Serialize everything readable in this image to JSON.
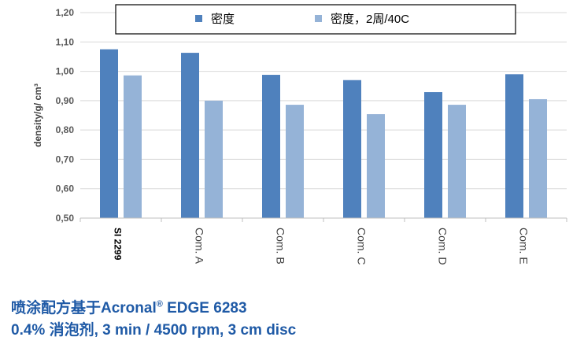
{
  "chart_data": {
    "type": "bar",
    "categories": [
      "SI 2299",
      "Com. A",
      "Com. B",
      "Com. C",
      "Com. D",
      "Com. E"
    ],
    "series": [
      {
        "name": "密度",
        "values": [
          1.075,
          1.063,
          0.988,
          0.97,
          0.929,
          0.99
        ],
        "color": "#4f81bd"
      },
      {
        "name": "密度，2周/40C",
        "values": [
          0.986,
          0.9,
          0.886,
          0.854,
          0.886,
          0.905
        ],
        "color": "#95b3d7"
      }
    ],
    "ylabel": "density/g/ cm³",
    "ylim": [
      0.5,
      1.2
    ],
    "yticks": [
      "0,50",
      "0,60",
      "0,70",
      "0,80",
      "0,90",
      "1,00",
      "1,10",
      "1,20"
    ],
    "grid": true,
    "legend": "top"
  },
  "caption": {
    "line1_text": "喷涂配方基于Acronal",
    "line1_sup": "®",
    "line1_tail": " EDGE 6283",
    "line2": "0.4% 消泡剂, 3 min / 4500 rpm, 3 cm disc"
  }
}
